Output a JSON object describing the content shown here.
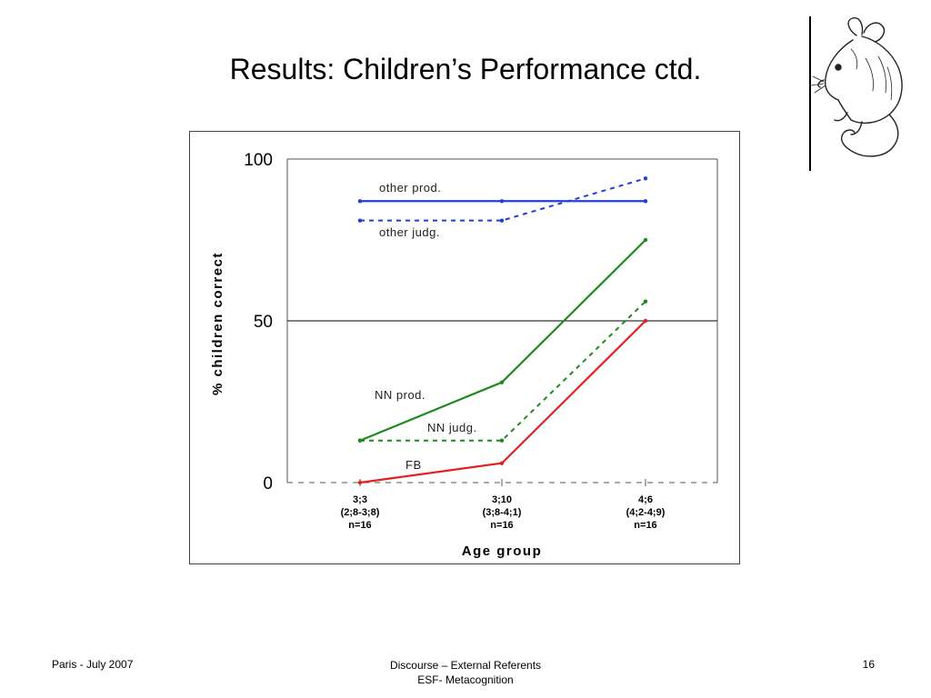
{
  "slide": {
    "title": "Results: Children’s Performance ctd.",
    "footer_left": "Paris - July 2007",
    "footer_center_line1": "Discourse – External Referents",
    "footer_center_line2": "ESF- Metacognition",
    "page_number": "16"
  },
  "chart_data": {
    "type": "line",
    "title": "",
    "xlabel": "Age group",
    "ylabel": "% children correct",
    "ylim": [
      0,
      100
    ],
    "yticks": [
      "0",
      "50",
      "100"
    ],
    "grid": false,
    "reference_line": 50,
    "categories": [
      [
        "3;3",
        "(2;8-3;8)",
        "n=16"
      ],
      [
        "3;10",
        "(3;8-4;1)",
        "n=16"
      ],
      [
        "4;6",
        "(4;2-4;9)",
        "n=16"
      ]
    ],
    "series": [
      {
        "name": "other prod.",
        "values": [
          87,
          87,
          87
        ],
        "color": "#1f3fd6",
        "dash": false
      },
      {
        "name": "other judg.",
        "values": [
          81,
          81,
          94
        ],
        "color": "#1f3fd6",
        "dash": true
      },
      {
        "name": "NN prod.",
        "values": [
          13,
          31,
          75
        ],
        "color": "#1e8a1e",
        "dash": false
      },
      {
        "name": "NN judg.",
        "values": [
          13,
          13,
          56
        ],
        "color": "#1e8a1e",
        "dash": true
      },
      {
        "name": "FB",
        "values": [
          0,
          6,
          50
        ],
        "color": "#e62020",
        "dash": false
      }
    ]
  }
}
